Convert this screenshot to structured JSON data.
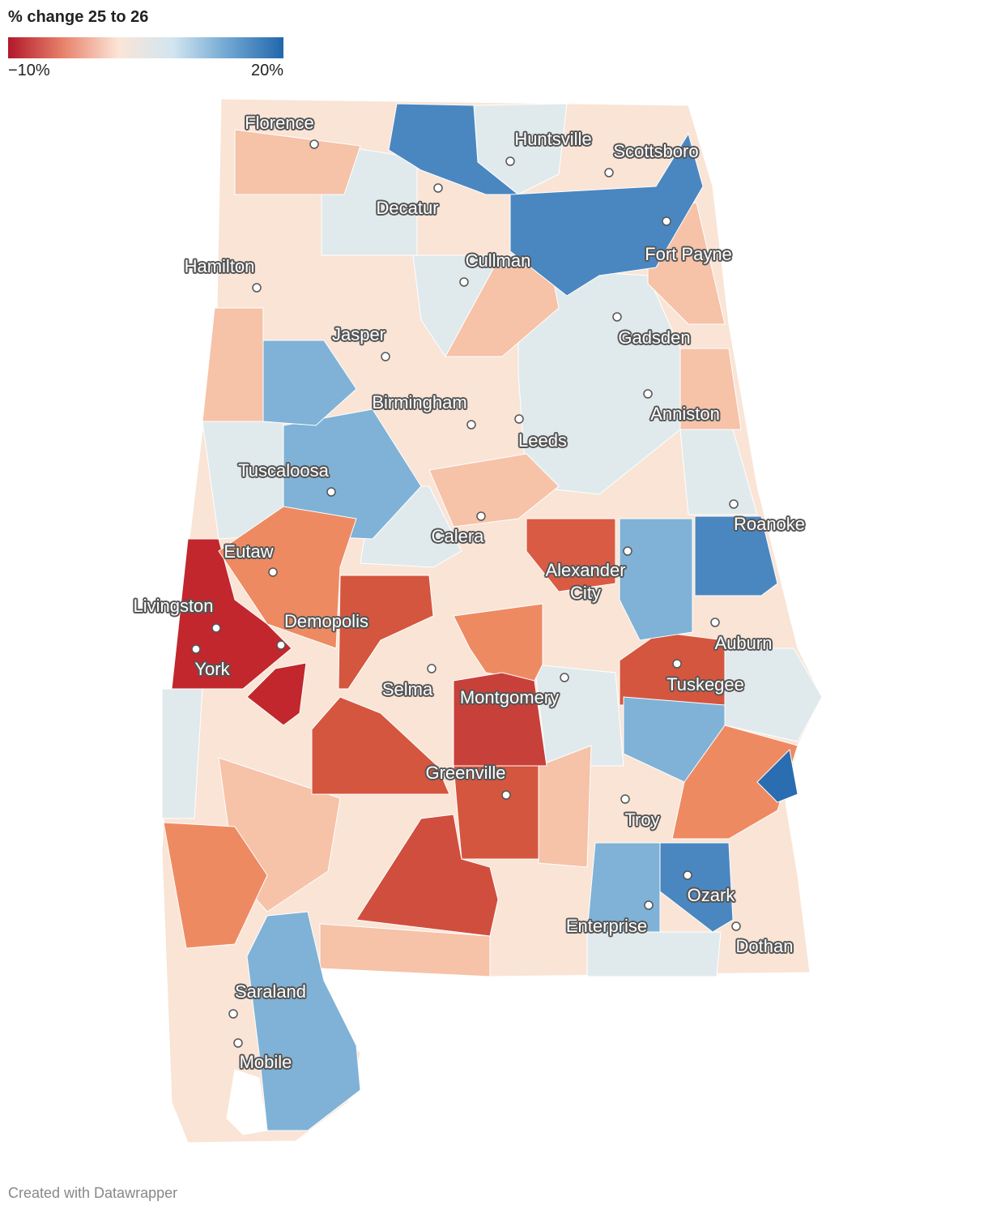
{
  "legend": {
    "title": "% change 25 to 26",
    "ticks": [
      {
        "value": -10,
        "label": "−10%"
      },
      {
        "value": 20,
        "label": "20%"
      }
    ],
    "colors": [
      "#b2182b",
      "#e8826b",
      "#fbe5d7",
      "#d1e5f0",
      "#6fa6d2",
      "#2166ac"
    ]
  },
  "cities": [
    "Florence",
    "Huntsville",
    "Scottsboro",
    "Decatur",
    "Fort Payne",
    "Hamilton",
    "Cullman",
    "Jasper",
    "Gadsden",
    "Birmingham",
    "Anniston",
    "Leeds",
    "Tuscaloosa",
    "Calera",
    "Roanoke",
    "Eutaw",
    "Alexander City",
    "Livingston",
    "Demopolis",
    "Auburn",
    "York",
    "Selma",
    "Tuskegee",
    "Montgomery",
    "Greenville",
    "Troy",
    "Ozark",
    "Enterprise",
    "Dothan",
    "Saraland",
    "Mobile"
  ],
  "footer": "Created with Datawrapper"
}
